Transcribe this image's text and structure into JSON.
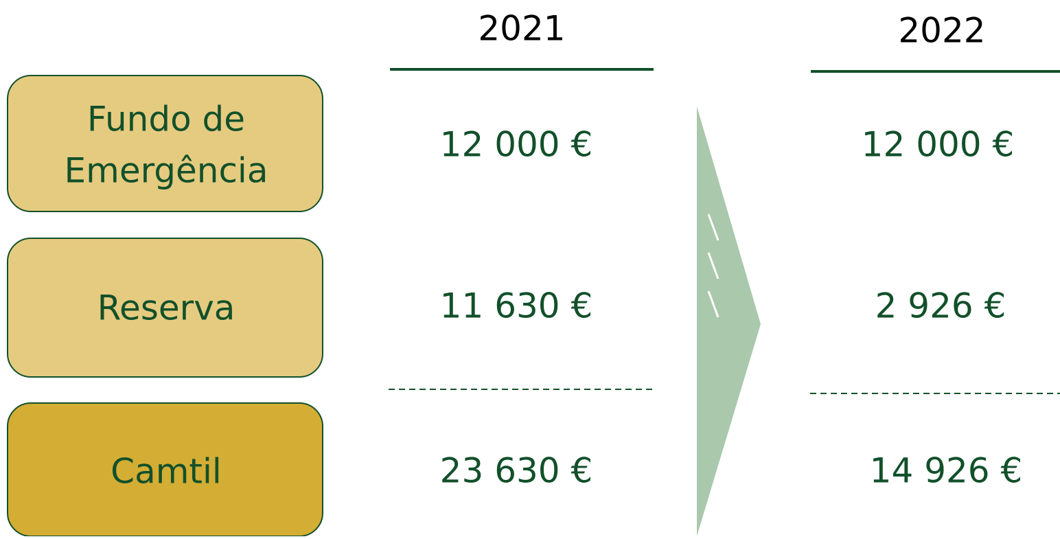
{
  "columns": [
    "2021",
    "2022"
  ],
  "rows": [
    {
      "label": "Fundo de Emergência",
      "values": [
        "12 000 €",
        "12 000 €"
      ]
    },
    {
      "label": "Reserva",
      "values": [
        "11 630 €",
        "2 926 €"
      ]
    },
    {
      "label": "Camtil",
      "values": [
        "23 630 €",
        "14 926 €"
      ]
    }
  ]
}
